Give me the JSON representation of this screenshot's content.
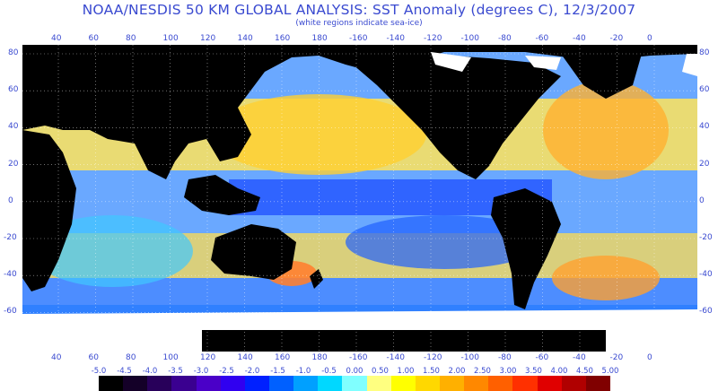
{
  "title": "NOAA/NESDIS 50 KM GLOBAL ANALYSIS: SST Anomaly (degrees C), 12/3/2007",
  "subtitle": "(white regions indicate sea-ice)",
  "longitude_ticks": [
    "40",
    "60",
    "80",
    "100",
    "120",
    "140",
    "160",
    "180",
    "-160",
    "-140",
    "-120",
    "-100",
    "-80",
    "-60",
    "-40",
    "-20",
    "0"
  ],
  "latitude_ticks": [
    "80",
    "60",
    "40",
    "20",
    "0",
    "-20",
    "-40",
    "-60"
  ],
  "colorbar": {
    "labels": [
      "-5.0",
      "-4.5",
      "-4.0",
      "-3.5",
      "-3.0",
      "-2.5",
      "-2.0",
      "-1.5",
      "-1.0",
      "-0.5",
      "0.00",
      "0.50",
      "1.00",
      "1.50",
      "2.00",
      "2.50",
      "3.00",
      "3.50",
      "4.00",
      "4.50",
      "5.00"
    ],
    "colors": [
      "#000000",
      "#140028",
      "#28005a",
      "#3a0090",
      "#4a00c8",
      "#3000f0",
      "#0020ff",
      "#0060ff",
      "#00a0ff",
      "#00d8ff",
      "#80ffff",
      "#ffff80",
      "#ffff00",
      "#ffd800",
      "#ffb000",
      "#ff8800",
      "#ff6000",
      "#ff3000",
      "#e00000",
      "#b00000",
      "#800000"
    ]
  },
  "colors": {
    "land": "#000000",
    "sea_ice": "#ffffff",
    "ocean_base": "#5aa0ff",
    "warm": "#ffd840",
    "hot": "#ff8830",
    "cool": "#2060ff",
    "cold": "#1030c0",
    "text": "#3a4ad0"
  }
}
